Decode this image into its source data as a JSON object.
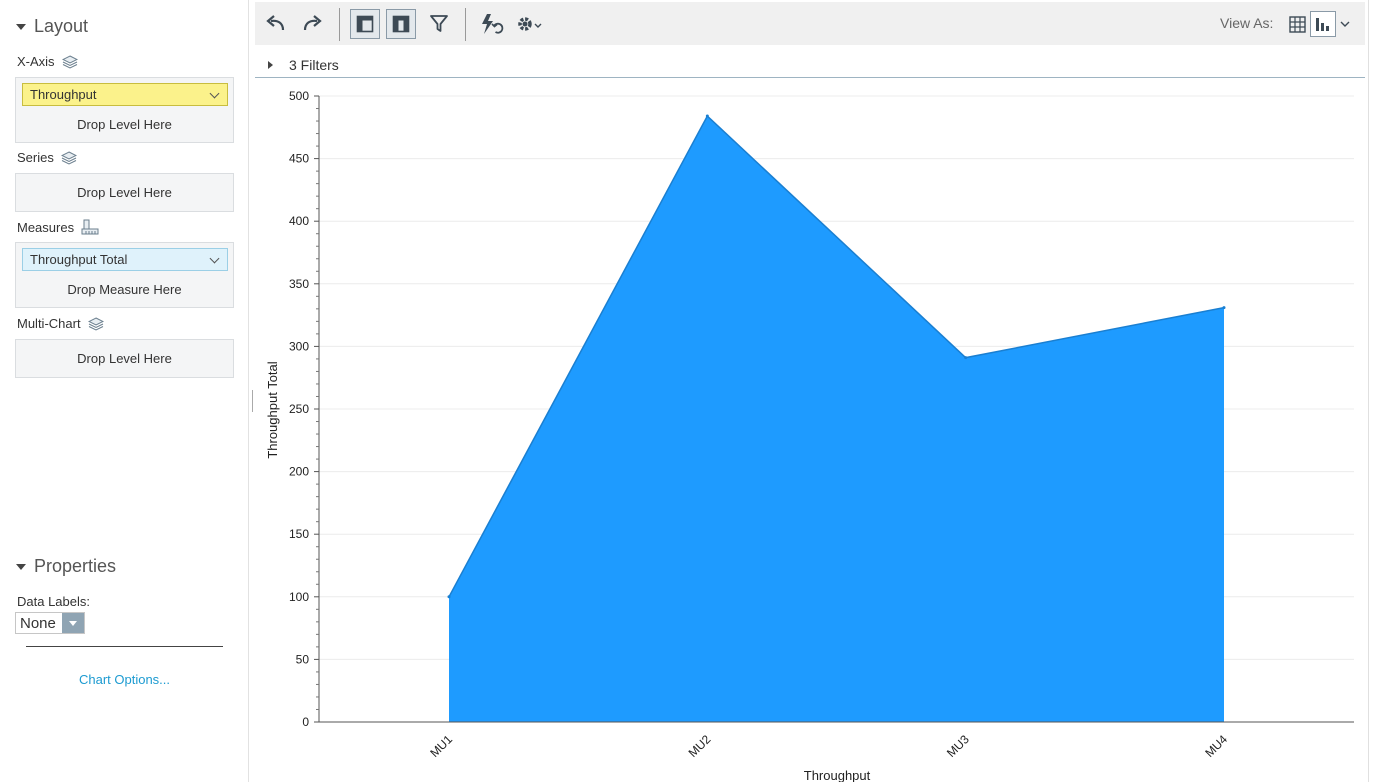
{
  "layout_panel": {
    "title": "Layout",
    "x_axis": {
      "label": "X-Axis",
      "chip": "Throughput",
      "drop_text": "Drop Level Here"
    },
    "series": {
      "label": "Series",
      "drop_text": "Drop Level Here"
    },
    "measures": {
      "label": "Measures",
      "chip": "Throughput Total",
      "drop_text": "Drop Measure Here"
    },
    "multi_chart": {
      "label": "Multi-Chart",
      "drop_text": "Drop Level Here"
    }
  },
  "properties_panel": {
    "title": "Properties",
    "data_labels_label": "Data Labels:",
    "data_labels_value": "None",
    "chart_options_link": "Chart Options..."
  },
  "toolbar": {
    "icons": [
      "undo-icon",
      "redo-icon",
      "layout-panel-icon",
      "properties-panel-icon",
      "filter-icon",
      "auto-refresh-icon",
      "settings-icon"
    ],
    "view_as_label": "View As:",
    "view_as_icons": [
      "table-view-icon",
      "chart-view-icon"
    ]
  },
  "filters_bar": {
    "text": "3 Filters"
  },
  "colors": {
    "area_fill": "#1e9bff",
    "area_stroke": "#1a7fd1",
    "chip_yellow": "#fbf28b",
    "chip_blue": "#dff2fb",
    "link": "#1d9bd1"
  },
  "chart_data": {
    "type": "area",
    "categories": [
      "MU1",
      "MU2",
      "MU3",
      "MU4"
    ],
    "series": [
      {
        "values": [
          100,
          484,
          291,
          331
        ]
      }
    ],
    "xlabel": "Throughput",
    "ylabel": "Throughput Total",
    "ylim": [
      0,
      500
    ],
    "yticks": [
      0,
      50,
      100,
      150,
      200,
      250,
      300,
      350,
      400,
      450,
      500
    ],
    "grid": true,
    "legend": "none"
  }
}
